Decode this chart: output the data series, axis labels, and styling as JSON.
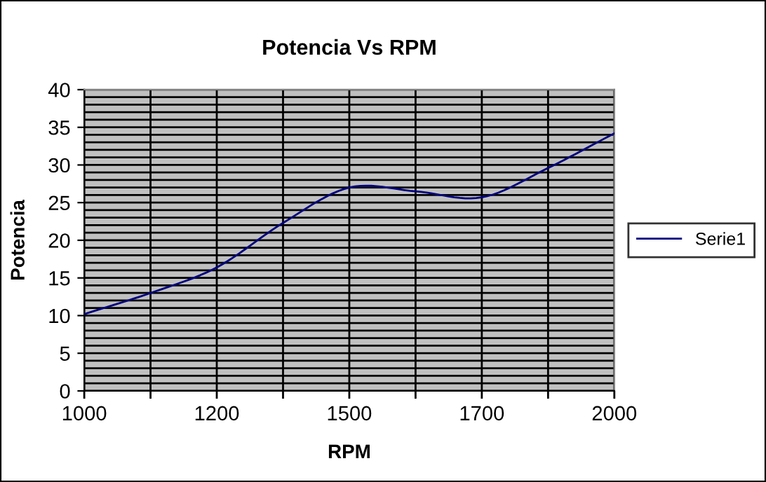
{
  "chart_data": {
    "type": "line",
    "title": "Potencia Vs RPM",
    "xlabel": "RPM",
    "ylabel": "Potencia",
    "categories": [
      "1000",
      null,
      "1200",
      null,
      "1500",
      null,
      "1700",
      null,
      "2000"
    ],
    "series": [
      {
        "name": "Serie1",
        "color": "#000080",
        "values": [
          10.2,
          13.0,
          16.4,
          22.3,
          27.0,
          26.5,
          25.7,
          29.6,
          34.2
        ]
      }
    ],
    "ylim": [
      0,
      40
    ],
    "yticks": [
      0,
      5,
      10,
      15,
      20,
      25,
      30,
      35,
      40
    ],
    "grid": true,
    "legend": "right",
    "marker": "none",
    "line_style": "solid"
  }
}
